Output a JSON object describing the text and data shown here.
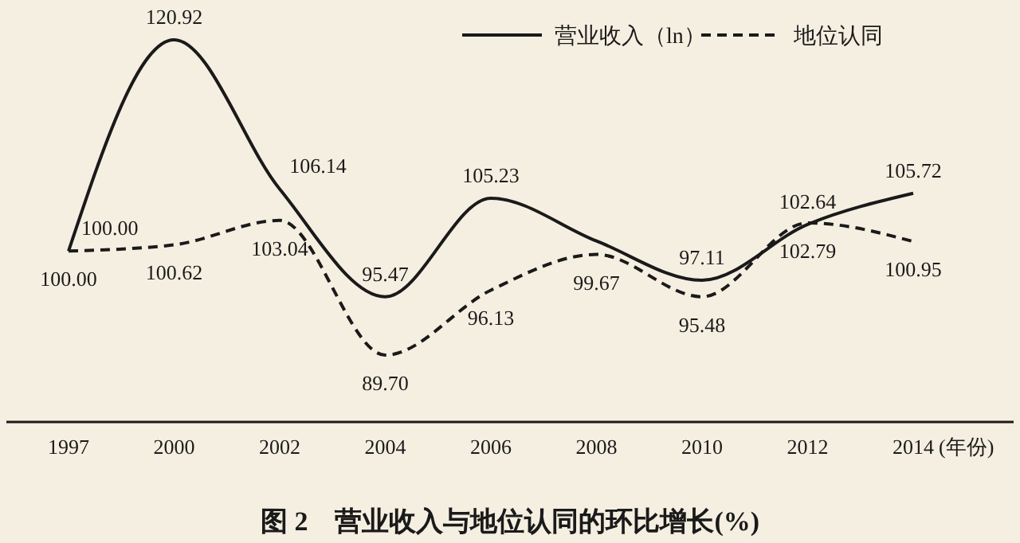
{
  "chart_data": {
    "type": "line",
    "title": "图 2　营业收入与地位认同的环比增长(%)",
    "xlabel": "(年份)",
    "categories": [
      "1997",
      "2000",
      "2002",
      "2004",
      "2006",
      "2008",
      "2010",
      "2012",
      "2014"
    ],
    "series": [
      {
        "name": "营业收入（ln）",
        "color": "#1a1a1a",
        "line_style": "solid",
        "values": [
          100.0,
          120.92,
          106.14,
          95.47,
          105.23,
          101,
          97.11,
          102.64,
          105.72
        ],
        "value_labels": [
          "100.00",
          "120.92",
          "106.14",
          "95.47",
          "105.23",
          null,
          "97.11",
          "102.64",
          "105.72"
        ]
      },
      {
        "name": "地位认同",
        "color": "#1a1a1a",
        "line_style": "dashed",
        "values": [
          100.0,
          100.62,
          103.04,
          89.7,
          96.13,
          99.67,
          95.48,
          102.79,
          100.95
        ],
        "value_labels": [
          "100.00",
          "100.62",
          "103.04",
          "89.70",
          "96.13",
          "99.67",
          "95.48",
          "102.79",
          "100.95"
        ]
      }
    ],
    "legend": "top right",
    "marker": "none"
  }
}
